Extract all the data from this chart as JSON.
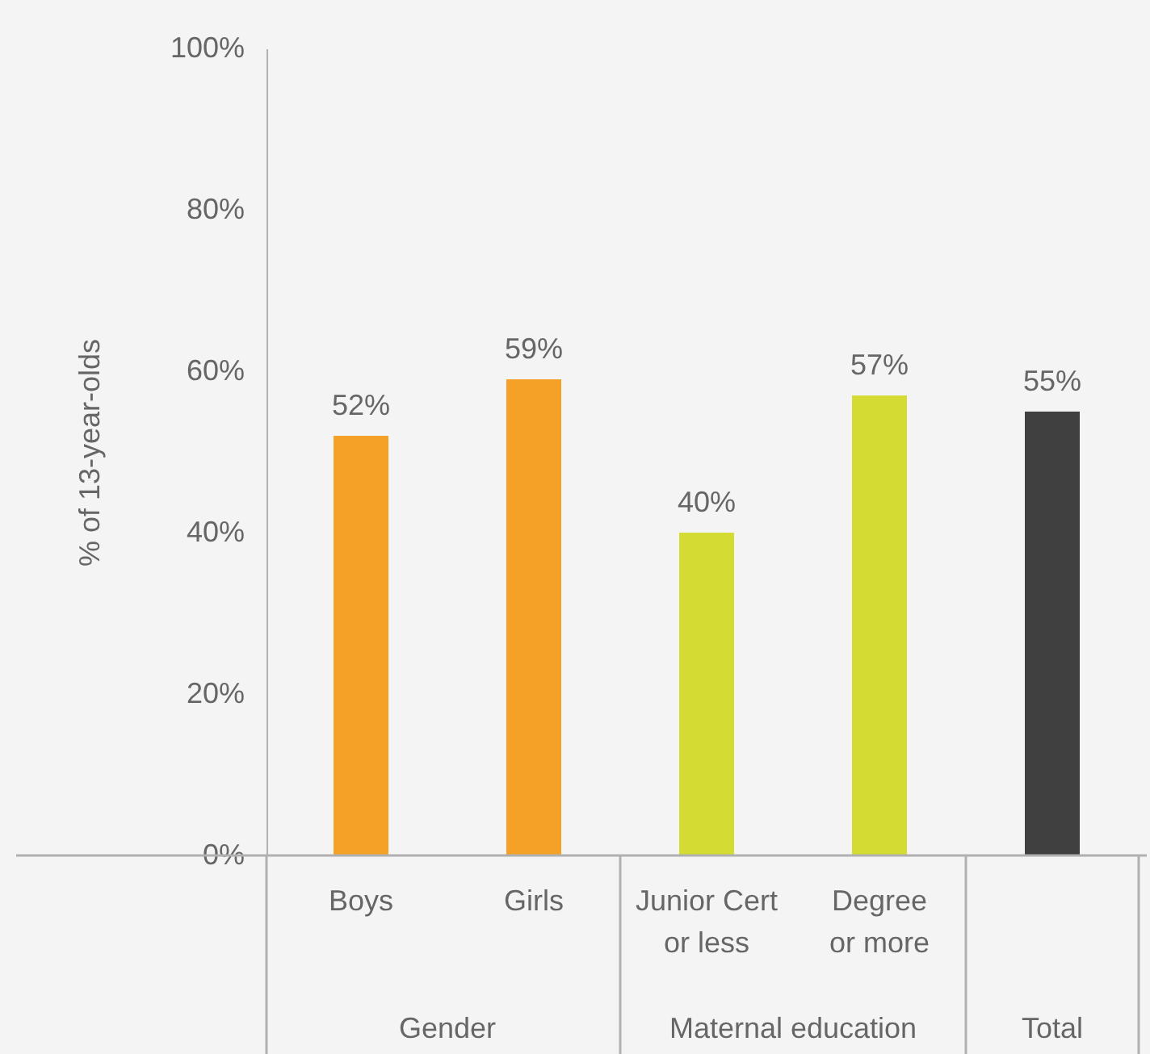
{
  "chart_data": {
    "type": "bar",
    "categories": [
      "Boys",
      "Girls",
      "Junior Cert or less",
      "Degree or more",
      null
    ],
    "values": [
      52,
      59,
      40,
      57,
      55
    ],
    "colors": [
      "#f5a027",
      "#f5a027",
      "#d4dc33",
      "#d4dc33",
      "#404040"
    ],
    "value_labels": [
      "52%",
      "59%",
      "40%",
      "57%",
      "55%"
    ],
    "ylabel": "% of 13-year-olds",
    "ylim": [
      0,
      100
    ],
    "yticks": [
      {
        "value": 0,
        "label": "0%"
      },
      {
        "value": 20,
        "label": "20%"
      },
      {
        "value": 40,
        "label": "40%"
      },
      {
        "value": 60,
        "label": "60%"
      },
      {
        "value": 80,
        "label": "80%"
      },
      {
        "value": 100,
        "label": "100%"
      }
    ],
    "annotations": [
      "Gender",
      "Maternal education",
      "Total"
    ],
    "grid": false
  }
}
